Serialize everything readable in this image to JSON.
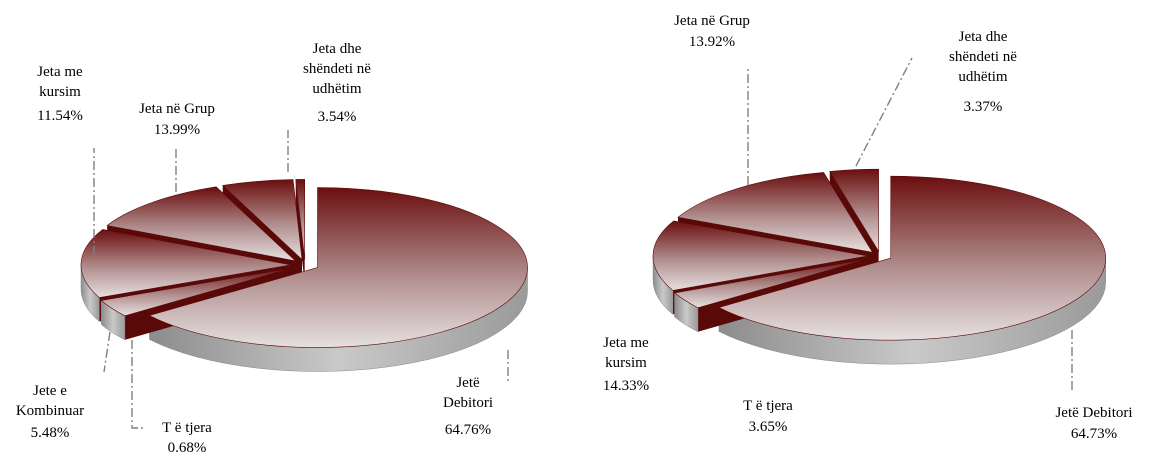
{
  "colors": {
    "dark": "#6b0e0e",
    "mid": "#9a5a5a",
    "light": "#e0d7d7",
    "side_dark": "#5a0909",
    "side_light": "#a9a9a9",
    "leader": "#7f7f7f"
  },
  "chart_data": [
    {
      "type": "pie",
      "title": "",
      "style": "3d-exploded",
      "slices": [
        {
          "label": "Jetë Debitori",
          "value": 64.76,
          "display": "64.76%"
        },
        {
          "label": "Jeta dhe shëndeti në udhëtim",
          "value": 3.54,
          "display": "3.54%"
        },
        {
          "label": "Jeta në Grup",
          "value": 13.99,
          "display": "13.99%"
        },
        {
          "label": "Jeta me kursim",
          "value": 11.54,
          "display": "11.54%"
        },
        {
          "label": "Jete e Kombinuar",
          "value": 5.48,
          "display": "5.48%"
        },
        {
          "label": "T ë tjera",
          "value": 0.68,
          "display": "0.68%"
        }
      ]
    },
    {
      "type": "pie",
      "title": "",
      "style": "3d-exploded",
      "slices": [
        {
          "label": "Jetë Debitori",
          "value": 64.73,
          "display": "64.73%"
        },
        {
          "label": "Jeta dhe shëndeti në udhëtim",
          "value": 3.37,
          "display": "3.37%"
        },
        {
          "label": "Jeta në Grup",
          "value": 13.92,
          "display": "13.92%"
        },
        {
          "label": "Jeta me kursim",
          "value": 14.33,
          "display": "14.33%"
        },
        {
          "label": "T ë tjera",
          "value": 3.65,
          "display": "3.65%"
        }
      ]
    }
  ]
}
